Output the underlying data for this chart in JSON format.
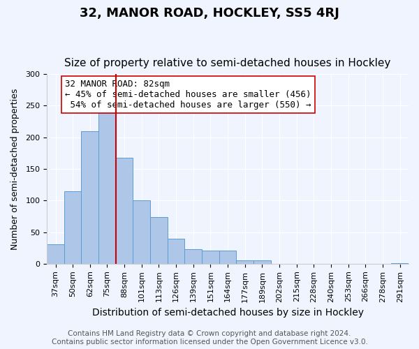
{
  "title": "32, MANOR ROAD, HOCKLEY, SS5 4RJ",
  "subtitle": "Size of property relative to semi-detached houses in Hockley",
  "xlabel": "Distribution of semi-detached houses by size in Hockley",
  "ylabel": "Number of semi-detached properties",
  "bar_color": "#aec6e8",
  "bar_edge_color": "#5b9bd5",
  "background_color": "#f0f4ff",
  "grid_color": "#ffffff",
  "categories": [
    "37sqm",
    "50sqm",
    "62sqm",
    "75sqm",
    "88sqm",
    "101sqm",
    "113sqm",
    "126sqm",
    "139sqm",
    "151sqm",
    "164sqm",
    "177sqm",
    "189sqm",
    "202sqm",
    "215sqm",
    "228sqm",
    "240sqm",
    "253sqm",
    "266sqm",
    "278sqm",
    "291sqm"
  ],
  "values": [
    31,
    115,
    210,
    238,
    168,
    100,
    74,
    39,
    23,
    21,
    21,
    5,
    5,
    0,
    0,
    0,
    0,
    0,
    0,
    0,
    1
  ],
  "ylim": [
    0,
    300
  ],
  "yticks": [
    0,
    50,
    100,
    150,
    200,
    250,
    300
  ],
  "property_value": 82,
  "property_label": "32 MANOR ROAD: 82sqm",
  "property_line_x": 4,
  "pct_smaller": 45,
  "pct_smaller_n": 456,
  "pct_larger": 54,
  "pct_larger_n": 550,
  "annotation_box_color": "#ffffff",
  "annotation_box_edge": "#cc0000",
  "vline_color": "#cc0000",
  "footer1": "Contains HM Land Registry data © Crown copyright and database right 2024.",
  "footer2": "Contains public sector information licensed under the Open Government Licence v3.0.",
  "title_fontsize": 13,
  "subtitle_fontsize": 11,
  "xlabel_fontsize": 10,
  "ylabel_fontsize": 9,
  "tick_fontsize": 8,
  "annotation_fontsize": 9,
  "footer_fontsize": 7.5
}
